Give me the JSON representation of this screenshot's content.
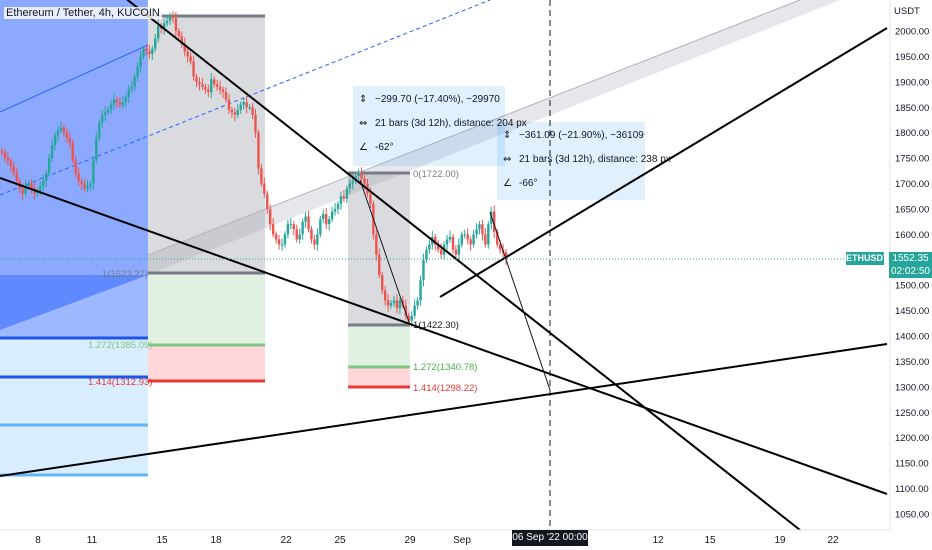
{
  "header": {
    "title": "Ethereum / Tether, 4h, KUCOIN"
  },
  "price_axis": {
    "currency": "USDT",
    "ticks": [
      "2000.00",
      "1950.00",
      "1900.00",
      "1850.00",
      "1800.00",
      "1750.00",
      "1700.00",
      "1650.00",
      "1600.00",
      "1500.00",
      "1450.00",
      "1400.00",
      "1350.00",
      "1300.00",
      "1250.00",
      "1200.00",
      "1150.00",
      "1100.00",
      "1050.00"
    ]
  },
  "time_axis": {
    "ticks": [
      "8",
      "11",
      "15",
      "18",
      "22",
      "25",
      "29",
      "Sep",
      "12",
      "15",
      "19",
      "22"
    ],
    "crosshair_date": "06 Sep '22  00:00"
  },
  "last_price": {
    "symbol": "ETHUSDT",
    "price": "1552.35",
    "countdown": "02:02:50"
  },
  "fib_labels": {
    "left": {
      "top": "1(1523.27)",
      "mid": "1.272(1385.09)",
      "low": "1.414(1312.93)"
    },
    "right": {
      "top": "0(1722.00)",
      "base": "1(1422.30)",
      "mid": "1.272(1340.78)",
      "low": "1.414(1298.22)"
    }
  },
  "measure_1": {
    "price_change": "−299.70 (−17.40%), −29970",
    "bars": "21 bars (3d 12h), distance: 204 px",
    "angle": "-62°"
  },
  "measure_2": {
    "price_change": "−361.09 (−21.90%), −36109",
    "bars": "21 bars (3d 12h), distance: 238 px",
    "angle": "-66°"
  },
  "colors": {
    "up": "#26a69a",
    "down": "#ef5350",
    "channel_blue": "#2962ff",
    "fib_red": "#e53935",
    "fib_green": "#81c784",
    "fib_gray": "#787b86"
  },
  "chart_data": {
    "type": "candlestick",
    "title": "Ethereum / Tether, 4h, KUCOIN",
    "ylabel": "USDT",
    "ylim": [
      1020,
      2090
    ],
    "x_ticks": [
      "8",
      "11",
      "15",
      "18",
      "22",
      "25",
      "29",
      "Sep",
      "12",
      "15",
      "19",
      "22"
    ],
    "closes": [
      1760,
      1750,
      1745,
      1735,
      1720,
      1705,
      1690,
      1680,
      1695,
      1700,
      1690,
      1680,
      1685,
      1695,
      1705,
      1720,
      1750,
      1775,
      1795,
      1805,
      1810,
      1800,
      1790,
      1780,
      1745,
      1720,
      1705,
      1700,
      1690,
      1695,
      1700,
      1745,
      1790,
      1820,
      1835,
      1840,
      1845,
      1855,
      1865,
      1860,
      1855,
      1860,
      1870,
      1885,
      1890,
      1910,
      1930,
      1950,
      1965,
      1960,
      1955,
      1965,
      1985,
      2010,
      2005,
      2015,
      2020,
      2030,
      2025,
      2000,
      1990,
      1975,
      1960,
      1950,
      1940,
      1910,
      1900,
      1895,
      1890,
      1885,
      1880,
      1905,
      1895,
      1890,
      1885,
      1880,
      1865,
      1845,
      1840,
      1835,
      1845,
      1855,
      1860,
      1850,
      1850,
      1835,
      1800,
      1730,
      1700,
      1680,
      1650,
      1620,
      1600,
      1590,
      1580,
      1580,
      1600,
      1620,
      1620,
      1610,
      1590,
      1600,
      1625,
      1635,
      1610,
      1590,
      1580,
      1600,
      1630,
      1640,
      1620,
      1630,
      1645,
      1650,
      1660,
      1675,
      1670,
      1690,
      1700,
      1705,
      1715,
      1720,
      1710,
      1700,
      1680,
      1660,
      1600,
      1560,
      1520,
      1490,
      1470,
      1460,
      1465,
      1470,
      1455,
      1470,
      1460,
      1440,
      1430,
      1440,
      1460,
      1470,
      1510,
      1550,
      1570,
      1580,
      1595,
      1580,
      1570,
      1560,
      1580,
      1590,
      1595,
      1570,
      1560,
      1580,
      1600,
      1600,
      1590,
      1580,
      1600,
      1610,
      1620,
      1600,
      1580,
      1620,
      1645,
      1605,
      1580,
      1570,
      1565,
      1552
    ]
  }
}
